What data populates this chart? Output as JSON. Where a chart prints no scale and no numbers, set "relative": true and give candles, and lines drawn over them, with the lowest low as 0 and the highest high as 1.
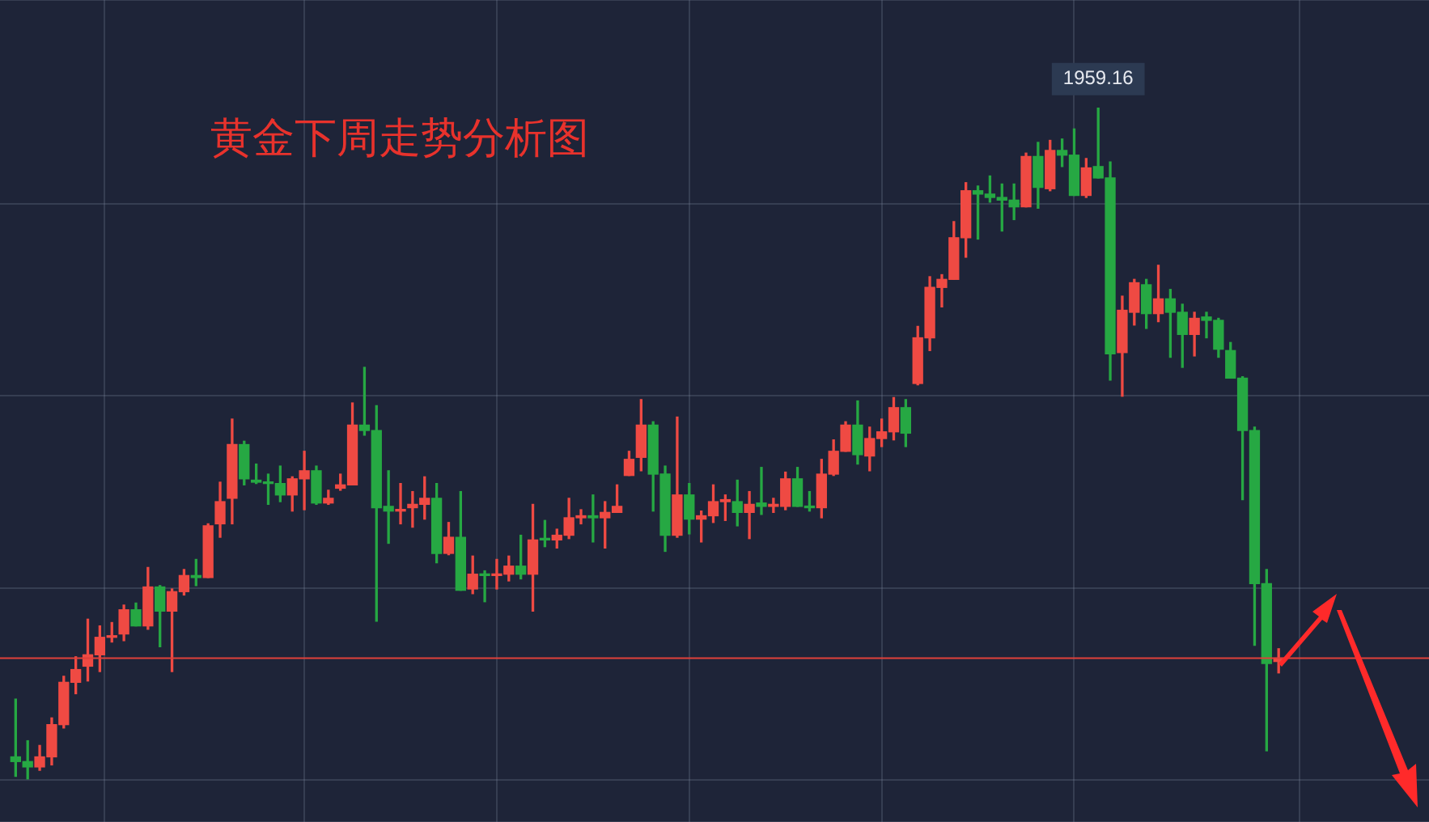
{
  "chart_data": {
    "type": "candlestick",
    "title": "黄金下周走势分析图",
    "relative": true,
    "grid": true,
    "annotations": [
      {
        "text": "1959.16",
        "y": 1
      }
    ],
    "ref_lines": [
      {
        "axis": "y",
        "value": 0.181,
        "color": "#e0403a"
      }
    ],
    "categories": [
      null,
      null,
      null,
      null,
      null,
      null,
      null,
      null,
      null,
      null,
      null,
      null,
      null,
      null,
      null,
      null,
      null,
      null,
      null,
      null,
      null,
      null,
      null,
      null,
      null,
      null,
      null,
      null,
      null,
      null,
      null,
      null,
      null,
      null,
      null,
      null,
      null,
      null,
      null,
      null,
      null,
      null,
      null,
      null,
      null,
      null,
      null,
      null,
      null,
      null,
      null,
      null,
      null,
      null,
      null,
      null,
      null,
      null,
      null,
      null,
      null,
      null,
      null,
      null,
      null,
      null,
      null,
      null,
      null,
      null,
      null,
      null,
      null,
      null,
      null,
      null,
      null,
      null,
      null,
      null,
      null,
      null,
      null,
      null,
      null,
      null,
      null,
      null,
      null,
      null,
      null,
      null,
      null,
      null,
      null,
      null,
      null,
      null,
      null,
      null,
      null,
      null,
      null,
      null,
      null,
      null
    ],
    "ohlc": [
      [
        0.034,
        0.12,
        0.005,
        0.027
      ],
      [
        0.027,
        0.058,
        0,
        0.019
      ],
      [
        0.019,
        0.051,
        0.014,
        0.034
      ],
      [
        0.034,
        0.092,
        0.022,
        0.082
      ],
      [
        0.082,
        0.154,
        0.077,
        0.145
      ],
      [
        0.145,
        0.183,
        0.128,
        0.164
      ],
      [
        0.169,
        0.239,
        0.147,
        0.186
      ],
      [
        0.186,
        0.229,
        0.161,
        0.212
      ],
      [
        0.212,
        0.234,
        0.205,
        0.214
      ],
      [
        0.217,
        0.26,
        0.207,
        0.253
      ],
      [
        0.253,
        0.263,
        0.229,
        0.229
      ],
      [
        0.229,
        0.316,
        0.224,
        0.287
      ],
      [
        0.287,
        0.289,
        0.198,
        0.251
      ],
      [
        0.251,
        0.284,
        0.161,
        0.28
      ],
      [
        0.28,
        0.313,
        0.275,
        0.304
      ],
      [
        0.304,
        0.328,
        0.289,
        0.301
      ],
      [
        0.301,
        0.381,
        0.301,
        0.378
      ],
      [
        0.381,
        0.443,
        0.361,
        0.414
      ],
      [
        0.419,
        0.537,
        0.381,
        0.499
      ],
      [
        0.499,
        0.504,
        0.439,
        0.448
      ],
      [
        0.446,
        0.47,
        0.441,
        0.443
      ],
      [
        0.443,
        0.455,
        0.41,
        0.441
      ],
      [
        0.441,
        0.467,
        0.414,
        0.424
      ],
      [
        0.424,
        0.451,
        0.4,
        0.448
      ],
      [
        0.448,
        0.489,
        0.402,
        0.46
      ],
      [
        0.46,
        0.467,
        0.41,
        0.412
      ],
      [
        0.412,
        0.431,
        0.41,
        0.419
      ],
      [
        0.434,
        0.455,
        0.431,
        0.439
      ],
      [
        0.439,
        0.561,
        0.439,
        0.528
      ],
      [
        0.528,
        0.614,
        0.513,
        0.52
      ],
      [
        0.52,
        0.557,
        0.236,
        0.405
      ],
      [
        0.407,
        0.46,
        0.352,
        0.4
      ],
      [
        0.4,
        0.441,
        0.381,
        0.402
      ],
      [
        0.405,
        0.429,
        0.376,
        0.41
      ],
      [
        0.41,
        0.451,
        0.388,
        0.419
      ],
      [
        0.419,
        0.441,
        0.323,
        0.337
      ],
      [
        0.337,
        0.383,
        0.335,
        0.361
      ],
      [
        0.361,
        0.429,
        0.282,
        0.282
      ],
      [
        0.284,
        0.333,
        0.277,
        0.306
      ],
      [
        0.306,
        0.311,
        0.265,
        0.304
      ],
      [
        0.304,
        0.328,
        0.284,
        0.306
      ],
      [
        0.306,
        0.333,
        0.296,
        0.318
      ],
      [
        0.318,
        0.364,
        0.299,
        0.306
      ],
      [
        0.306,
        0.41,
        0.251,
        0.357
      ],
      [
        0.359,
        0.386,
        0.347,
        0.357
      ],
      [
        0.357,
        0.373,
        0.345,
        0.364
      ],
      [
        0.364,
        0.419,
        0.359,
        0.39
      ],
      [
        0.39,
        0.402,
        0.381,
        0.393
      ],
      [
        0.393,
        0.424,
        0.354,
        0.39
      ],
      [
        0.39,
        0.414,
        0.345,
        0.398
      ],
      [
        0.398,
        0.439,
        0.398,
        0.407
      ],
      [
        0.453,
        0.489,
        0.453,
        0.477
      ],
      [
        0.48,
        0.566,
        0.46,
        0.528
      ],
      [
        0.528,
        0.533,
        0.4,
        0.455
      ],
      [
        0.455,
        0.467,
        0.34,
        0.364
      ],
      [
        0.364,
        0.54,
        0.361,
        0.424
      ],
      [
        0.424,
        0.441,
        0.366,
        0.388
      ],
      [
        0.388,
        0.4,
        0.354,
        0.393
      ],
      [
        0.393,
        0.439,
        0.383,
        0.414
      ],
      [
        0.414,
        0.424,
        0.386,
        0.417
      ],
      [
        0.414,
        0.446,
        0.378,
        0.398
      ],
      [
        0.398,
        0.429,
        0.359,
        0.41
      ],
      [
        0.412,
        0.465,
        0.395,
        0.407
      ],
      [
        0.407,
        0.419,
        0.398,
        0.41
      ],
      [
        0.407,
        0.458,
        0.402,
        0.448
      ],
      [
        0.448,
        0.465,
        0.407,
        0.407
      ],
      [
        0.407,
        0.429,
        0.4,
        0.405
      ],
      [
        0.405,
        0.477,
        0.39,
        0.455
      ],
      [
        0.455,
        0.506,
        0.453,
        0.489
      ],
      [
        0.489,
        0.533,
        0.489,
        0.528
      ],
      [
        0.528,
        0.564,
        0.47,
        0.484
      ],
      [
        0.482,
        0.525,
        0.46,
        0.508
      ],
      [
        0.508,
        0.537,
        0.496,
        0.518
      ],
      [
        0.518,
        0.569,
        0.506,
        0.554
      ],
      [
        0.554,
        0.566,
        0.496,
        0.516
      ],
      [
        0.59,
        0.675,
        0.588,
        0.658
      ],
      [
        0.658,
        0.749,
        0.639,
        0.733
      ],
      [
        0.733,
        0.752,
        0.704,
        0.745
      ],
      [
        0.745,
        0.831,
        0.745,
        0.807
      ],
      [
        0.807,
        0.889,
        0.778,
        0.877
      ],
      [
        0.877,
        0.884,
        0.805,
        0.872
      ],
      [
        0.872,
        0.899,
        0.86,
        0.867
      ],
      [
        0.867,
        0.887,
        0.817,
        0.863
      ],
      [
        0.863,
        0.887,
        0.834,
        0.853
      ],
      [
        0.853,
        0.933,
        0.853,
        0.928
      ],
      [
        0.928,
        0.949,
        0.851,
        0.882
      ],
      [
        0.88,
        0.952,
        0.877,
        0.937
      ],
      [
        0.937,
        0.954,
        0.913,
        0.93
      ],
      [
        0.93,
        0.969,
        0.87,
        0.87
      ],
      [
        0.87,
        0.925,
        0.867,
        0.911
      ],
      [
        0.913,
        1,
        0.896,
        0.896
      ],
      [
        0.896,
        0.92,
        0.595,
        0.634
      ],
      [
        0.636,
        0.72,
        0.571,
        0.699
      ],
      [
        0.696,
        0.745,
        0.677,
        0.74
      ],
      [
        0.737,
        0.745,
        0.672,
        0.694
      ],
      [
        0.694,
        0.766,
        0.682,
        0.716
      ],
      [
        0.716,
        0.73,
        0.629,
        0.696
      ],
      [
        0.696,
        0.708,
        0.614,
        0.663
      ],
      [
        0.663,
        0.696,
        0.631,
        0.687
      ],
      [
        0.689,
        0.696,
        0.658,
        0.684
      ],
      [
        0.684,
        0.687,
        0.629,
        0.641
      ],
      [
        0.639,
        0.651,
        0.598,
        0.598
      ],
      [
        0.598,
        0.6,
        0.417,
        0.52
      ],
      [
        0.52,
        0.525,
        0.2,
        0.292
      ],
      [
        0.292,
        0.313,
        0.043,
        0.173
      ],
      [
        0.176,
        0.195,
        0.159,
        0.181
      ]
    ]
  }
}
